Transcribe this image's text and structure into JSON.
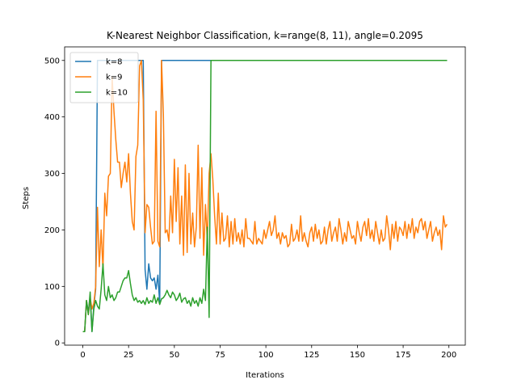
{
  "chart_data": {
    "type": "line",
    "title": "K-Nearest Neighbor Classification, k=range(8, 11), angle=0.2095",
    "xlabel": "Iterations",
    "ylabel": "Steps",
    "xlim": [
      -9.95,
      208.95
    ],
    "ylim": [
      -4,
      524
    ],
    "xticks": [
      0,
      25,
      50,
      75,
      100,
      125,
      150,
      175,
      200
    ],
    "yticks": [
      0,
      100,
      200,
      300,
      400,
      500
    ],
    "grid": false,
    "legend_position": "upper-left",
    "series": [
      {
        "name": "k=8",
        "color": "#1f77b4",
        "points": [
          [
            0,
            20
          ],
          [
            1,
            20
          ],
          [
            2,
            75
          ],
          [
            3,
            55
          ],
          [
            4,
            80
          ],
          [
            5,
            20
          ],
          [
            6,
            65
          ],
          [
            7,
            95
          ],
          [
            8,
            500
          ],
          [
            9,
            500
          ],
          [
            10,
            500
          ],
          [
            11,
            500
          ],
          [
            12,
            500
          ],
          [
            13,
            500
          ],
          [
            14,
            500
          ],
          [
            15,
            500
          ],
          [
            16,
            500
          ],
          [
            17,
            500
          ],
          [
            18,
            500
          ],
          [
            19,
            500
          ],
          [
            20,
            500
          ],
          [
            21,
            500
          ],
          [
            22,
            500
          ],
          [
            23,
            500
          ],
          [
            24,
            500
          ],
          [
            25,
            500
          ],
          [
            26,
            500
          ],
          [
            27,
            500
          ],
          [
            28,
            500
          ],
          [
            29,
            500
          ],
          [
            30,
            500
          ],
          [
            31,
            500
          ],
          [
            32,
            500
          ],
          [
            33,
            500
          ],
          [
            34,
            130
          ],
          [
            35,
            95
          ],
          [
            36,
            140
          ],
          [
            37,
            115
          ],
          [
            38,
            110
          ],
          [
            39,
            115
          ],
          [
            40,
            95
          ],
          [
            41,
            120
          ],
          [
            42,
            70
          ],
          [
            43,
            500
          ],
          [
            44,
            500
          ],
          [
            50,
            500
          ],
          [
            60,
            500
          ],
          [
            70,
            500
          ],
          [
            80,
            500
          ],
          [
            100,
            500
          ],
          [
            120,
            500
          ],
          [
            140,
            500
          ],
          [
            160,
            500
          ],
          [
            180,
            500
          ],
          [
            199,
            500
          ]
        ]
      },
      {
        "name": "k=9",
        "color": "#ff7f0e",
        "points": [
          [
            0,
            20
          ],
          [
            1,
            20
          ],
          [
            2,
            75
          ],
          [
            3,
            50
          ],
          [
            4,
            80
          ],
          [
            5,
            60
          ],
          [
            6,
            70
          ],
          [
            7,
            100
          ],
          [
            8,
            240
          ],
          [
            9,
            135
          ],
          [
            10,
            200
          ],
          [
            11,
            130
          ],
          [
            12,
            265
          ],
          [
            13,
            225
          ],
          [
            14,
            295
          ],
          [
            15,
            300
          ],
          [
            16,
            470
          ],
          [
            17,
            410
          ],
          [
            18,
            360
          ],
          [
            19,
            320
          ],
          [
            20,
            320
          ],
          [
            21,
            275
          ],
          [
            22,
            300
          ],
          [
            23,
            320
          ],
          [
            24,
            285
          ],
          [
            25,
            335
          ],
          [
            26,
            265
          ],
          [
            27,
            215
          ],
          [
            28,
            200
          ],
          [
            29,
            330
          ],
          [
            30,
            350
          ],
          [
            31,
            490
          ],
          [
            32,
            500
          ],
          [
            33,
            430
          ],
          [
            34,
            195
          ],
          [
            35,
            245
          ],
          [
            36,
            240
          ],
          [
            37,
            205
          ],
          [
            38,
            175
          ],
          [
            39,
            180
          ],
          [
            40,
            410
          ],
          [
            41,
            180
          ],
          [
            42,
            170
          ],
          [
            43,
            500
          ],
          [
            44,
            405
          ],
          [
            45,
            195
          ],
          [
            46,
            200
          ],
          [
            47,
            180
          ],
          [
            48,
            260
          ],
          [
            49,
            195
          ],
          [
            50,
            325
          ],
          [
            51,
            215
          ],
          [
            52,
            310
          ],
          [
            53,
            175
          ],
          [
            54,
            260
          ],
          [
            55,
            155
          ],
          [
            56,
            315
          ],
          [
            57,
            160
          ],
          [
            58,
            300
          ],
          [
            59,
            175
          ],
          [
            60,
            230
          ],
          [
            61,
            170
          ],
          [
            62,
            205
          ],
          [
            63,
            350
          ],
          [
            64,
            185
          ],
          [
            65,
            310
          ],
          [
            66,
            155
          ],
          [
            67,
            245
          ],
          [
            68,
            180
          ],
          [
            69,
            300
          ],
          [
            70,
            335
          ],
          [
            71,
            290
          ],
          [
            72,
            225
          ],
          [
            73,
            175
          ],
          [
            74,
            265
          ],
          [
            75,
            175
          ],
          [
            76,
            230
          ],
          [
            77,
            180
          ],
          [
            78,
            185
          ],
          [
            79,
            225
          ],
          [
            80,
            170
          ],
          [
            81,
            215
          ],
          [
            82,
            175
          ],
          [
            83,
            220
          ],
          [
            84,
            180
          ],
          [
            85,
            195
          ],
          [
            86,
            175
          ],
          [
            87,
            200
          ],
          [
            88,
            170
          ],
          [
            89,
            220
          ],
          [
            90,
            185
          ],
          [
            91,
            185
          ],
          [
            92,
            180
          ],
          [
            93,
            175
          ],
          [
            94,
            215
          ],
          [
            95,
            175
          ],
          [
            96,
            185
          ],
          [
            97,
            180
          ],
          [
            98,
            175
          ],
          [
            99,
            200
          ],
          [
            100,
            185
          ],
          [
            101,
            200
          ],
          [
            102,
            215
          ],
          [
            103,
            190
          ],
          [
            104,
            200
          ],
          [
            105,
            225
          ],
          [
            106,
            185
          ],
          [
            107,
            195
          ],
          [
            108,
            175
          ],
          [
            109,
            195
          ],
          [
            110,
            185
          ],
          [
            111,
            190
          ],
          [
            112,
            170
          ],
          [
            113,
            175
          ],
          [
            114,
            210
          ],
          [
            115,
            180
          ],
          [
            116,
            185
          ],
          [
            117,
            200
          ],
          [
            118,
            180
          ],
          [
            119,
            225
          ],
          [
            120,
            180
          ],
          [
            121,
            195
          ],
          [
            122,
            180
          ],
          [
            123,
            170
          ],
          [
            124,
            195
          ],
          [
            125,
            205
          ],
          [
            126,
            180
          ],
          [
            127,
            210
          ],
          [
            128,
            185
          ],
          [
            129,
            200
          ],
          [
            130,
            175
          ],
          [
            131,
            180
          ],
          [
            132,
            205
          ],
          [
            133,
            175
          ],
          [
            134,
            200
          ],
          [
            135,
            215
          ],
          [
            136,
            180
          ],
          [
            137,
            195
          ],
          [
            138,
            205
          ],
          [
            139,
            180
          ],
          [
            140,
            220
          ],
          [
            141,
            200
          ],
          [
            142,
            175
          ],
          [
            143,
            195
          ],
          [
            144,
            180
          ],
          [
            145,
            215
          ],
          [
            146,
            200
          ],
          [
            147,
            185
          ],
          [
            148,
            190
          ],
          [
            149,
            175
          ],
          [
            150,
            215
          ],
          [
            151,
            195
          ],
          [
            152,
            180
          ],
          [
            153,
            205
          ],
          [
            154,
            215
          ],
          [
            155,
            190
          ],
          [
            156,
            220
          ],
          [
            157,
            185
          ],
          [
            158,
            200
          ],
          [
            159,
            180
          ],
          [
            160,
            215
          ],
          [
            161,
            195
          ],
          [
            162,
            175
          ],
          [
            163,
            200
          ],
          [
            164,
            180
          ],
          [
            165,
            185
          ],
          [
            166,
            225
          ],
          [
            167,
            200
          ],
          [
            168,
            165
          ],
          [
            169,
            210
          ],
          [
            170,
            185
          ],
          [
            171,
            215
          ],
          [
            172,
            180
          ],
          [
            173,
            205
          ],
          [
            174,
            200
          ],
          [
            175,
            190
          ],
          [
            176,
            215
          ],
          [
            177,
            185
          ],
          [
            178,
            210
          ],
          [
            179,
            195
          ],
          [
            180,
            220
          ],
          [
            181,
            185
          ],
          [
            182,
            205
          ],
          [
            183,
            195
          ],
          [
            184,
            215
          ],
          [
            185,
            220
          ],
          [
            186,
            200
          ],
          [
            187,
            215
          ],
          [
            188,
            185
          ],
          [
            189,
            200
          ],
          [
            190,
            215
          ],
          [
            191,
            180
          ],
          [
            192,
            195
          ],
          [
            193,
            205
          ],
          [
            194,
            190
          ],
          [
            195,
            200
          ],
          [
            196,
            165
          ],
          [
            197,
            225
          ],
          [
            198,
            205
          ],
          [
            199,
            210
          ]
        ]
      },
      {
        "name": "k=10",
        "color": "#2ca02c",
        "points": [
          [
            0,
            20
          ],
          [
            1,
            20
          ],
          [
            2,
            75
          ],
          [
            3,
            50
          ],
          [
            4,
            90
          ],
          [
            5,
            20
          ],
          [
            6,
            60
          ],
          [
            7,
            75
          ],
          [
            8,
            65
          ],
          [
            9,
            60
          ],
          [
            10,
            95
          ],
          [
            11,
            140
          ],
          [
            12,
            85
          ],
          [
            13,
            75
          ],
          [
            14,
            100
          ],
          [
            15,
            80
          ],
          [
            16,
            85
          ],
          [
            17,
            75
          ],
          [
            18,
            80
          ],
          [
            19,
            90
          ],
          [
            20,
            90
          ],
          [
            21,
            100
          ],
          [
            22,
            110
          ],
          [
            23,
            115
          ],
          [
            24,
            115
          ],
          [
            25,
            128
          ],
          [
            26,
            105
          ],
          [
            27,
            85
          ],
          [
            28,
            75
          ],
          [
            29,
            80
          ],
          [
            30,
            72
          ],
          [
            31,
            75
          ],
          [
            32,
            70
          ],
          [
            33,
            75
          ],
          [
            34,
            68
          ],
          [
            35,
            80
          ],
          [
            36,
            70
          ],
          [
            37,
            75
          ],
          [
            38,
            72
          ],
          [
            39,
            85
          ],
          [
            40,
            70
          ],
          [
            41,
            80
          ],
          [
            42,
            68
          ],
          [
            43,
            78
          ],
          [
            44,
            80
          ],
          [
            45,
            85
          ],
          [
            46,
            93
          ],
          [
            47,
            85
          ],
          [
            48,
            80
          ],
          [
            49,
            90
          ],
          [
            50,
            85
          ],
          [
            51,
            75
          ],
          [
            52,
            80
          ],
          [
            53,
            88
          ],
          [
            54,
            72
          ],
          [
            55,
            78
          ],
          [
            56,
            80
          ],
          [
            57,
            70
          ],
          [
            58,
            75
          ],
          [
            59,
            65
          ],
          [
            60,
            80
          ],
          [
            61,
            70
          ],
          [
            62,
            75
          ],
          [
            63,
            65
          ],
          [
            64,
            80
          ],
          [
            65,
            70
          ],
          [
            66,
            95
          ],
          [
            67,
            75
          ],
          [
            68,
            205
          ],
          [
            69,
            45
          ],
          [
            70,
            500
          ],
          [
            80,
            500
          ],
          [
            100,
            500
          ],
          [
            120,
            500
          ],
          [
            140,
            500
          ],
          [
            160,
            500
          ],
          [
            180,
            500
          ],
          [
            199,
            500
          ]
        ]
      }
    ]
  }
}
